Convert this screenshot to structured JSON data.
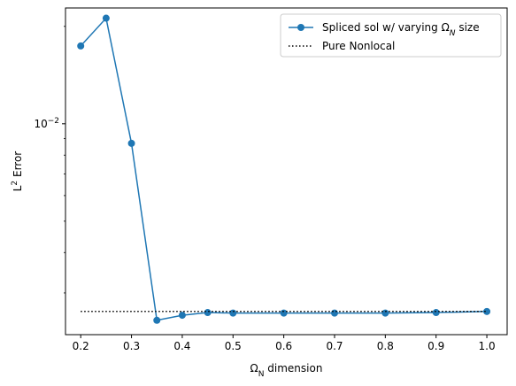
{
  "chart_data": {
    "type": "line",
    "title": "",
    "xlabel": "ΩN dimension",
    "xlabel_parts": {
      "base": "Ω",
      "sub": "N",
      "rest": " dimension"
    },
    "ylabel": "L2 Error",
    "ylabel_parts": {
      "base": "L",
      "sup": "2",
      "rest": " Error"
    },
    "xlim": [
      0.17,
      1.04
    ],
    "ylim_log": [
      0.00223,
      0.0228
    ],
    "yscale": "log",
    "grid": false,
    "legend_position": "top-right",
    "x_ticks": [
      0.2,
      0.3,
      0.4,
      0.5,
      0.6,
      0.7,
      0.8,
      0.9,
      1.0
    ],
    "x_tick_labels": [
      "0.2",
      "0.3",
      "0.4",
      "0.5",
      "0.6",
      "0.7",
      "0.8",
      "0.9",
      "1.0"
    ],
    "y_major_ticks": [
      0.01
    ],
    "y_major_tick_labels": [
      {
        "base": "10",
        "sup": "−2"
      }
    ],
    "series": [
      {
        "name": "Spliced sol w/ varying ΩN size",
        "name_parts": {
          "pre": "Spliced sol w/ varying ",
          "base": "Ω",
          "sub": "N",
          "post": " size"
        },
        "style": "solid-marker",
        "color": "#1f77b4",
        "x": [
          0.2,
          0.25,
          0.3,
          0.35,
          0.4,
          0.45,
          0.5,
          0.6,
          0.7,
          0.8,
          0.9,
          1.0
        ],
        "y": [
          0.0174,
          0.0212,
          0.0087,
          0.00247,
          0.00256,
          0.00261,
          0.0026,
          0.0026,
          0.0026,
          0.0026,
          0.00261,
          0.00263
        ]
      },
      {
        "name": "Pure Nonlocal",
        "style": "dotted",
        "color": "#000000",
        "x": [
          0.2,
          1.0
        ],
        "y": [
          0.00263,
          0.00263
        ]
      }
    ]
  }
}
